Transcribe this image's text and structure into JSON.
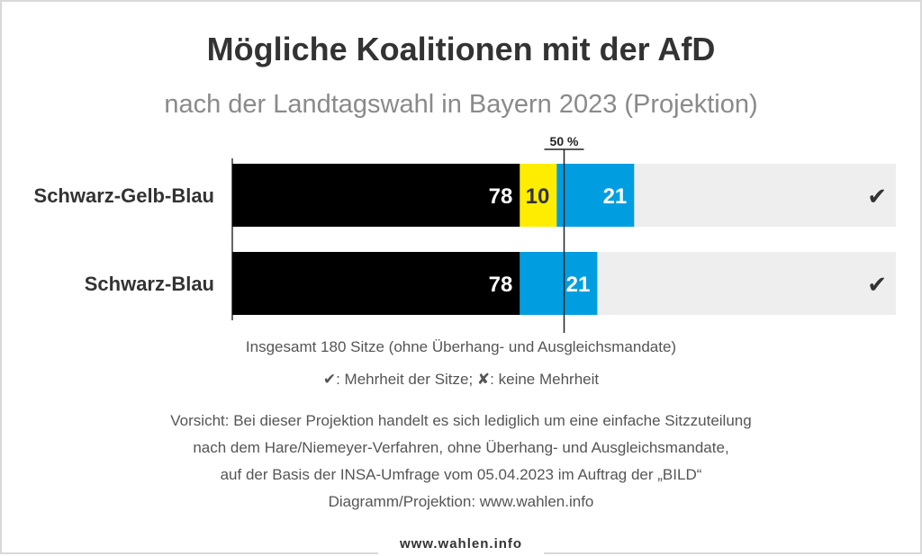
{
  "title": "Mögliche Koalitionen mit der AfD",
  "subtitle": "nach der Landtagswahl in Bayern 2023 (Projektion)",
  "colors": {
    "background_bar": "#eeeeee",
    "threshold_line": "#222222"
  },
  "chart_data": {
    "type": "bar",
    "orientation": "horizontal",
    "stacked": true,
    "total_seats": 180,
    "threshold_label": "50 %",
    "threshold_fraction": 0.5,
    "xlim": [
      0,
      180
    ],
    "categories": [
      "Schwarz-Gelb-Blau",
      "Schwarz-Blau"
    ],
    "rows": [
      {
        "label": "Schwarz-Gelb-Blau",
        "segments": [
          {
            "value": 78,
            "color": "#000000",
            "text_color": "#ffffff"
          },
          {
            "value": 10,
            "color": "#ffed00",
            "text_color": "#333333"
          },
          {
            "value": 21,
            "color": "#009ee0",
            "text_color": "#ffffff"
          }
        ],
        "majority_mark": "✔"
      },
      {
        "label": "Schwarz-Blau",
        "segments": [
          {
            "value": 78,
            "color": "#000000",
            "text_color": "#ffffff"
          },
          {
            "value": 21,
            "color": "#009ee0",
            "text_color": "#ffffff"
          }
        ],
        "majority_mark": "✔"
      }
    ]
  },
  "notes": {
    "total": "Insgesamt 180 Sitze (ohne Überhang- und Ausgleichsmandate)",
    "legend": "✔: Mehrheit der Sitze; ✘: keine Mehrheit",
    "disclaimer_1": "Vorsicht: Bei dieser Projektion handelt es sich lediglich um eine einfache Sitzzuteilung",
    "disclaimer_2": "nach dem Hare/Niemeyer-Verfahren, ohne Überhang- und Ausgleichsmandate,",
    "disclaimer_3": "auf der Basis der INSA-Umfrage vom 05.04.2023 im Auftrag der „BILD“",
    "credit": "Diagramm/Projektion: www.wahlen.info"
  },
  "footer_brand": "www.wahlen.info"
}
